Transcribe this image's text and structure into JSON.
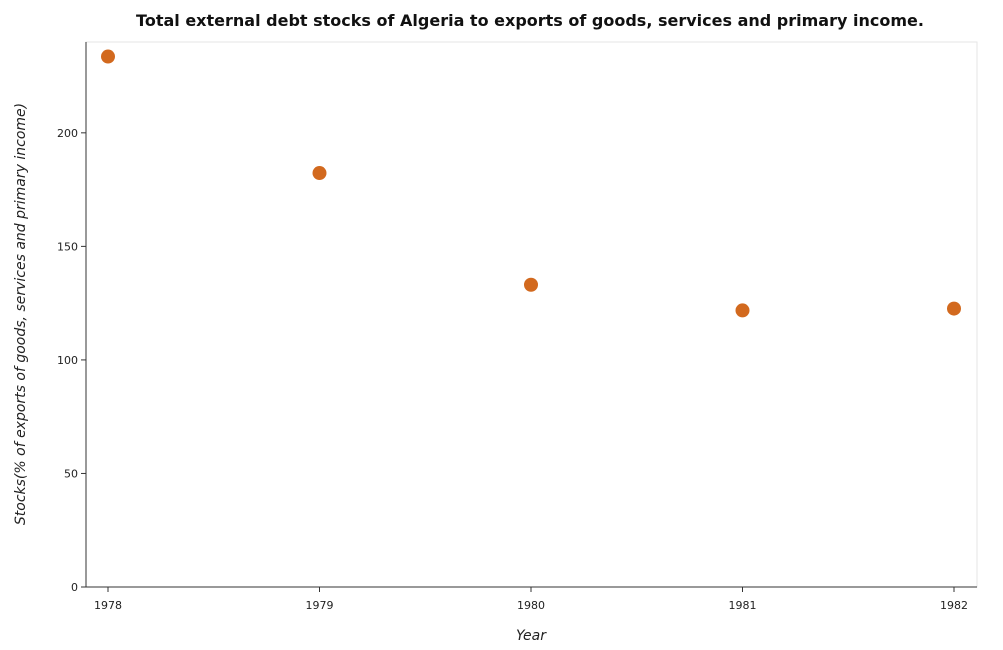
{
  "chart_data": {
    "type": "scatter",
    "title": "Total external debt stocks of Algeria to exports of goods, services and primary income.",
    "xlabel": "Year",
    "ylabel": "Stocks(% of exports of goods, services and primary income)",
    "categories": [
      "1978",
      "1979",
      "1980",
      "1981",
      "1982"
    ],
    "values": [
      233.6,
      182.3,
      133.1,
      121.8,
      122.6
    ],
    "y_ticks": [
      0,
      50,
      100,
      150,
      200
    ],
    "ylim": [
      0,
      240
    ],
    "grid": false,
    "marker_color": "#d2691e"
  }
}
